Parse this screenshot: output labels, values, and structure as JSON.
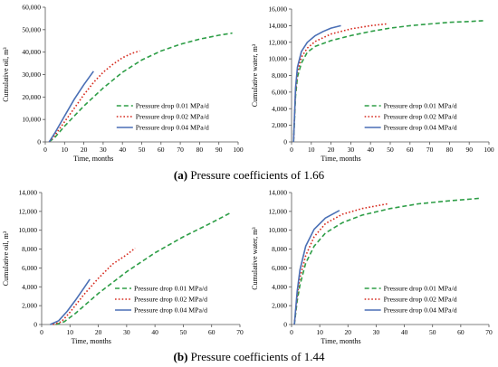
{
  "captions": {
    "a": {
      "tag": "(a)",
      "text": "Pressure coefficients of 1.66"
    },
    "b": {
      "tag": "(b)",
      "text": "Pressure coefficients of 1.44"
    }
  },
  "colors": {
    "green": "#2e9e47",
    "red": "#d62a1e",
    "blue": "#4a6fb5"
  },
  "chart_data": [
    {
      "type": "line",
      "xlabel": "Time, months",
      "ylabel": "Cumulative oil, m³",
      "xlim": [
        0,
        100
      ],
      "ylim": [
        0,
        60000
      ],
      "xticks": [
        0,
        10,
        20,
        30,
        40,
        50,
        60,
        70,
        80,
        90,
        100
      ],
      "yticks": [
        0,
        10000,
        20000,
        30000,
        40000,
        50000,
        60000
      ],
      "ytick_labels": [
        "0",
        "10,000",
        "20,000",
        "30,000",
        "40,000",
        "50,000",
        "60,000"
      ],
      "grid": false,
      "legend": "bottom-right",
      "series": [
        {
          "name": "Pressure drop 0.01 MPa/d",
          "color": "#2e9e47",
          "style": "dashed",
          "x": [
            2,
            5,
            10,
            20,
            30,
            40,
            50,
            60,
            70,
            80,
            90,
            97
          ],
          "y": [
            0,
            2000,
            7000,
            16000,
            24000,
            31000,
            36500,
            40500,
            43500,
            45800,
            47500,
            48500
          ]
        },
        {
          "name": "Pressure drop 0.02 MPa/d",
          "color": "#d62a1e",
          "style": "dotted",
          "x": [
            2,
            5,
            10,
            15,
            20,
            25,
            30,
            35,
            40,
            45,
            49
          ],
          "y": [
            0,
            3000,
            9000,
            15000,
            21000,
            26500,
            31000,
            34500,
            37500,
            39500,
            40500
          ]
        },
        {
          "name": "Pressure drop 0.04 MPa/d",
          "color": "#4a6fb5",
          "style": "solid",
          "x": [
            2,
            5,
            10,
            15,
            20,
            25
          ],
          "y": [
            0,
            4000,
            11500,
            19000,
            25500,
            31500
          ]
        }
      ]
    },
    {
      "type": "line",
      "xlabel": "Time, months",
      "ylabel": "Cumulative water, m³",
      "xlim": [
        0,
        100
      ],
      "ylim": [
        0,
        16000
      ],
      "xticks": [
        0,
        10,
        20,
        30,
        40,
        50,
        60,
        70,
        80,
        90,
        100
      ],
      "yticks": [
        0,
        2000,
        4000,
        6000,
        8000,
        10000,
        12000,
        14000,
        16000
      ],
      "ytick_labels": [
        "0",
        "2,000",
        "4,000",
        "6,000",
        "8,000",
        "10,000",
        "12,000",
        "14,000",
        "16,000"
      ],
      "grid": false,
      "legend": "bottom-right",
      "series": [
        {
          "name": "Pressure drop 0.01 MPa/d",
          "color": "#2e9e47",
          "style": "dashed",
          "x": [
            1,
            2,
            3,
            5,
            8,
            12,
            20,
            30,
            40,
            50,
            60,
            70,
            80,
            90,
            97
          ],
          "y": [
            0,
            5500,
            7800,
            9500,
            10800,
            11500,
            12200,
            12800,
            13300,
            13700,
            14000,
            14200,
            14400,
            14500,
            14600
          ]
        },
        {
          "name": "Pressure drop 0.02 MPa/d",
          "color": "#d62a1e",
          "style": "dotted",
          "x": [
            1,
            2,
            3,
            5,
            8,
            12,
            20,
            30,
            40,
            48
          ],
          "y": [
            0,
            6000,
            8400,
            10200,
            11300,
            12100,
            13000,
            13600,
            14000,
            14200
          ]
        },
        {
          "name": "Pressure drop 0.04 MPa/d",
          "color": "#4a6fb5",
          "style": "solid",
          "x": [
            1,
            2,
            3,
            5,
            8,
            12,
            16,
            20,
            25
          ],
          "y": [
            0,
            6500,
            9000,
            10900,
            12000,
            12800,
            13300,
            13700,
            14000
          ]
        }
      ]
    },
    {
      "type": "line",
      "xlabel": "Time, months",
      "ylabel": "Cumulative oil, m³",
      "xlim": [
        0,
        70
      ],
      "ylim": [
        0,
        14000
      ],
      "xticks": [
        0,
        10,
        20,
        30,
        40,
        50,
        60,
        70
      ],
      "yticks": [
        0,
        2000,
        4000,
        6000,
        8000,
        10000,
        12000,
        14000
      ],
      "ytick_labels": [
        "0",
        "2,000",
        "4,000",
        "6,000",
        "8,000",
        "10,000",
        "12,000",
        "14,000"
      ],
      "grid": false,
      "legend": "bottom-right",
      "series": [
        {
          "name": "Pressure drop 0.01 MPa/d",
          "color": "#2e9e47",
          "style": "dashed",
          "x": [
            5,
            8,
            12,
            20,
            30,
            40,
            50,
            60,
            67
          ],
          "y": [
            0,
            300,
            1200,
            3300,
            5600,
            7600,
            9300,
            10800,
            11900
          ]
        },
        {
          "name": "Pressure drop 0.02 MPa/d",
          "color": "#d62a1e",
          "style": "dotted",
          "x": [
            4,
            7,
            10,
            15,
            20,
            25,
            30,
            33
          ],
          "y": [
            0,
            300,
            1300,
            3200,
            4900,
            6400,
            7400,
            8100
          ]
        },
        {
          "name": "Pressure drop 0.04 MPa/d",
          "color": "#4a6fb5",
          "style": "solid",
          "x": [
            3,
            6,
            9,
            12,
            15,
            17
          ],
          "y": [
            0,
            400,
            1400,
            2600,
            3900,
            4800
          ]
        }
      ]
    },
    {
      "type": "line",
      "xlabel": "Time, months",
      "ylabel": "Cumulative water, m³",
      "xlim": [
        0,
        70
      ],
      "ylim": [
        0,
        14000
      ],
      "xticks": [
        0,
        10,
        20,
        30,
        40,
        50,
        60,
        70
      ],
      "yticks": [
        0,
        2000,
        4000,
        6000,
        8000,
        10000,
        12000,
        14000
      ],
      "ytick_labels": [
        "0",
        "2,000",
        "4,000",
        "6,000",
        "8,000",
        "10,000",
        "12,000",
        "14,000"
      ],
      "grid": false,
      "legend": "bottom-right",
      "series": [
        {
          "name": "Pressure drop 0.01 MPa/d",
          "color": "#2e9e47",
          "style": "dashed",
          "x": [
            1,
            2,
            3,
            5,
            8,
            12,
            18,
            25,
            35,
            45,
            55,
            67
          ],
          "y": [
            0,
            2500,
            4200,
            6500,
            8300,
            9700,
            10800,
            11600,
            12300,
            12800,
            13100,
            13400
          ]
        },
        {
          "name": "Pressure drop 0.02 MPa/d",
          "color": "#d62a1e",
          "style": "dotted",
          "x": [
            1,
            2,
            3,
            5,
            8,
            12,
            18,
            25,
            34
          ],
          "y": [
            0,
            3000,
            5000,
            7300,
            9300,
            10700,
            11700,
            12300,
            12800
          ]
        },
        {
          "name": "Pressure drop 0.04 MPa/d",
          "color": "#4a6fb5",
          "style": "solid",
          "x": [
            1,
            2,
            3,
            5,
            8,
            12,
            17
          ],
          "y": [
            0,
            3500,
            5800,
            8300,
            10100,
            11300,
            12100
          ]
        }
      ]
    }
  ]
}
